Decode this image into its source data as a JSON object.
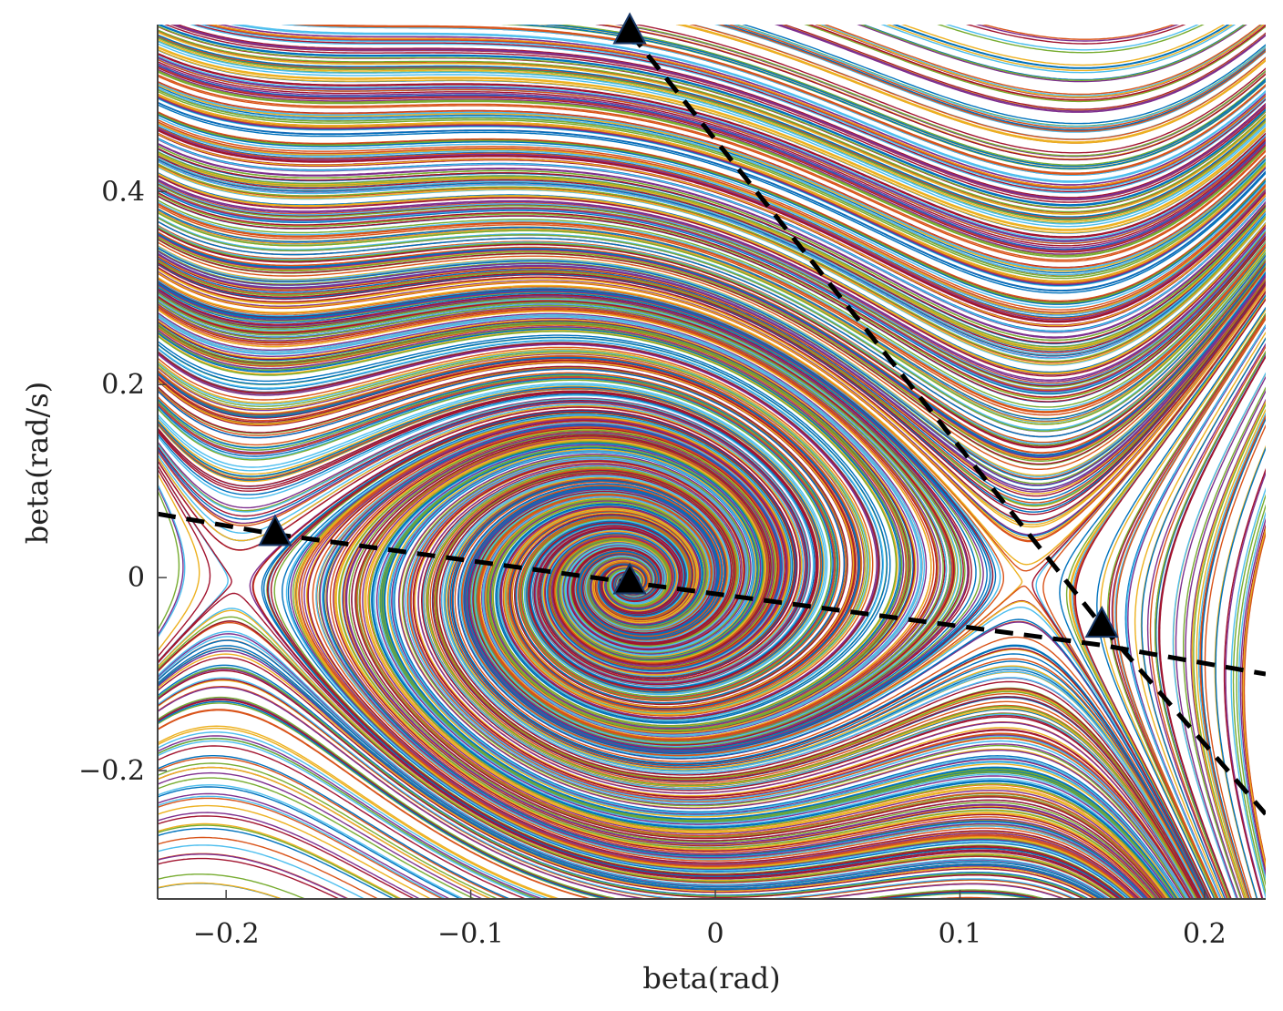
{
  "chart_data": {
    "type": "streamplot",
    "title": "",
    "xlabel": "beta(rad)",
    "ylabel": "beta(rad/s)",
    "xlim": [
      -0.228,
      0.225
    ],
    "ylim": [
      -0.333,
      0.573
    ],
    "xticks": [
      -0.2,
      -0.1,
      0,
      0.1,
      0.2
    ],
    "xtick_labels": [
      "−0.2",
      "−0.1",
      "0",
      "0.1",
      "0.2"
    ],
    "yticks": [
      -0.2,
      0,
      0.2,
      0.4
    ],
    "ytick_labels": [
      "−0.2",
      "0",
      "0.2",
      "0.4"
    ],
    "grid": false,
    "equilibrium_points": [
      {
        "x": -0.035,
        "y": -0.005
      },
      {
        "x": -0.18,
        "y": 0.045
      },
      {
        "x": 0.158,
        "y": -0.05
      },
      {
        "x": -0.035,
        "y": 0.565
      }
    ],
    "separatrix_lines": [
      {
        "points": [
          [
            -0.228,
            0.066
          ],
          [
            -0.18,
            0.045
          ],
          [
            -0.035,
            -0.005
          ],
          [
            0.158,
            -0.07
          ],
          [
            0.225,
            -0.1
          ]
        ]
      },
      {
        "points": [
          [
            -0.035,
            0.565
          ],
          [
            0.158,
            -0.05
          ],
          [
            0.225,
            -0.245
          ]
        ]
      }
    ],
    "trajectory_colors": [
      "#0072bd",
      "#d95319",
      "#edb120",
      "#7e2f8e",
      "#77ac30",
      "#4dbeee",
      "#a2142f"
    ]
  }
}
